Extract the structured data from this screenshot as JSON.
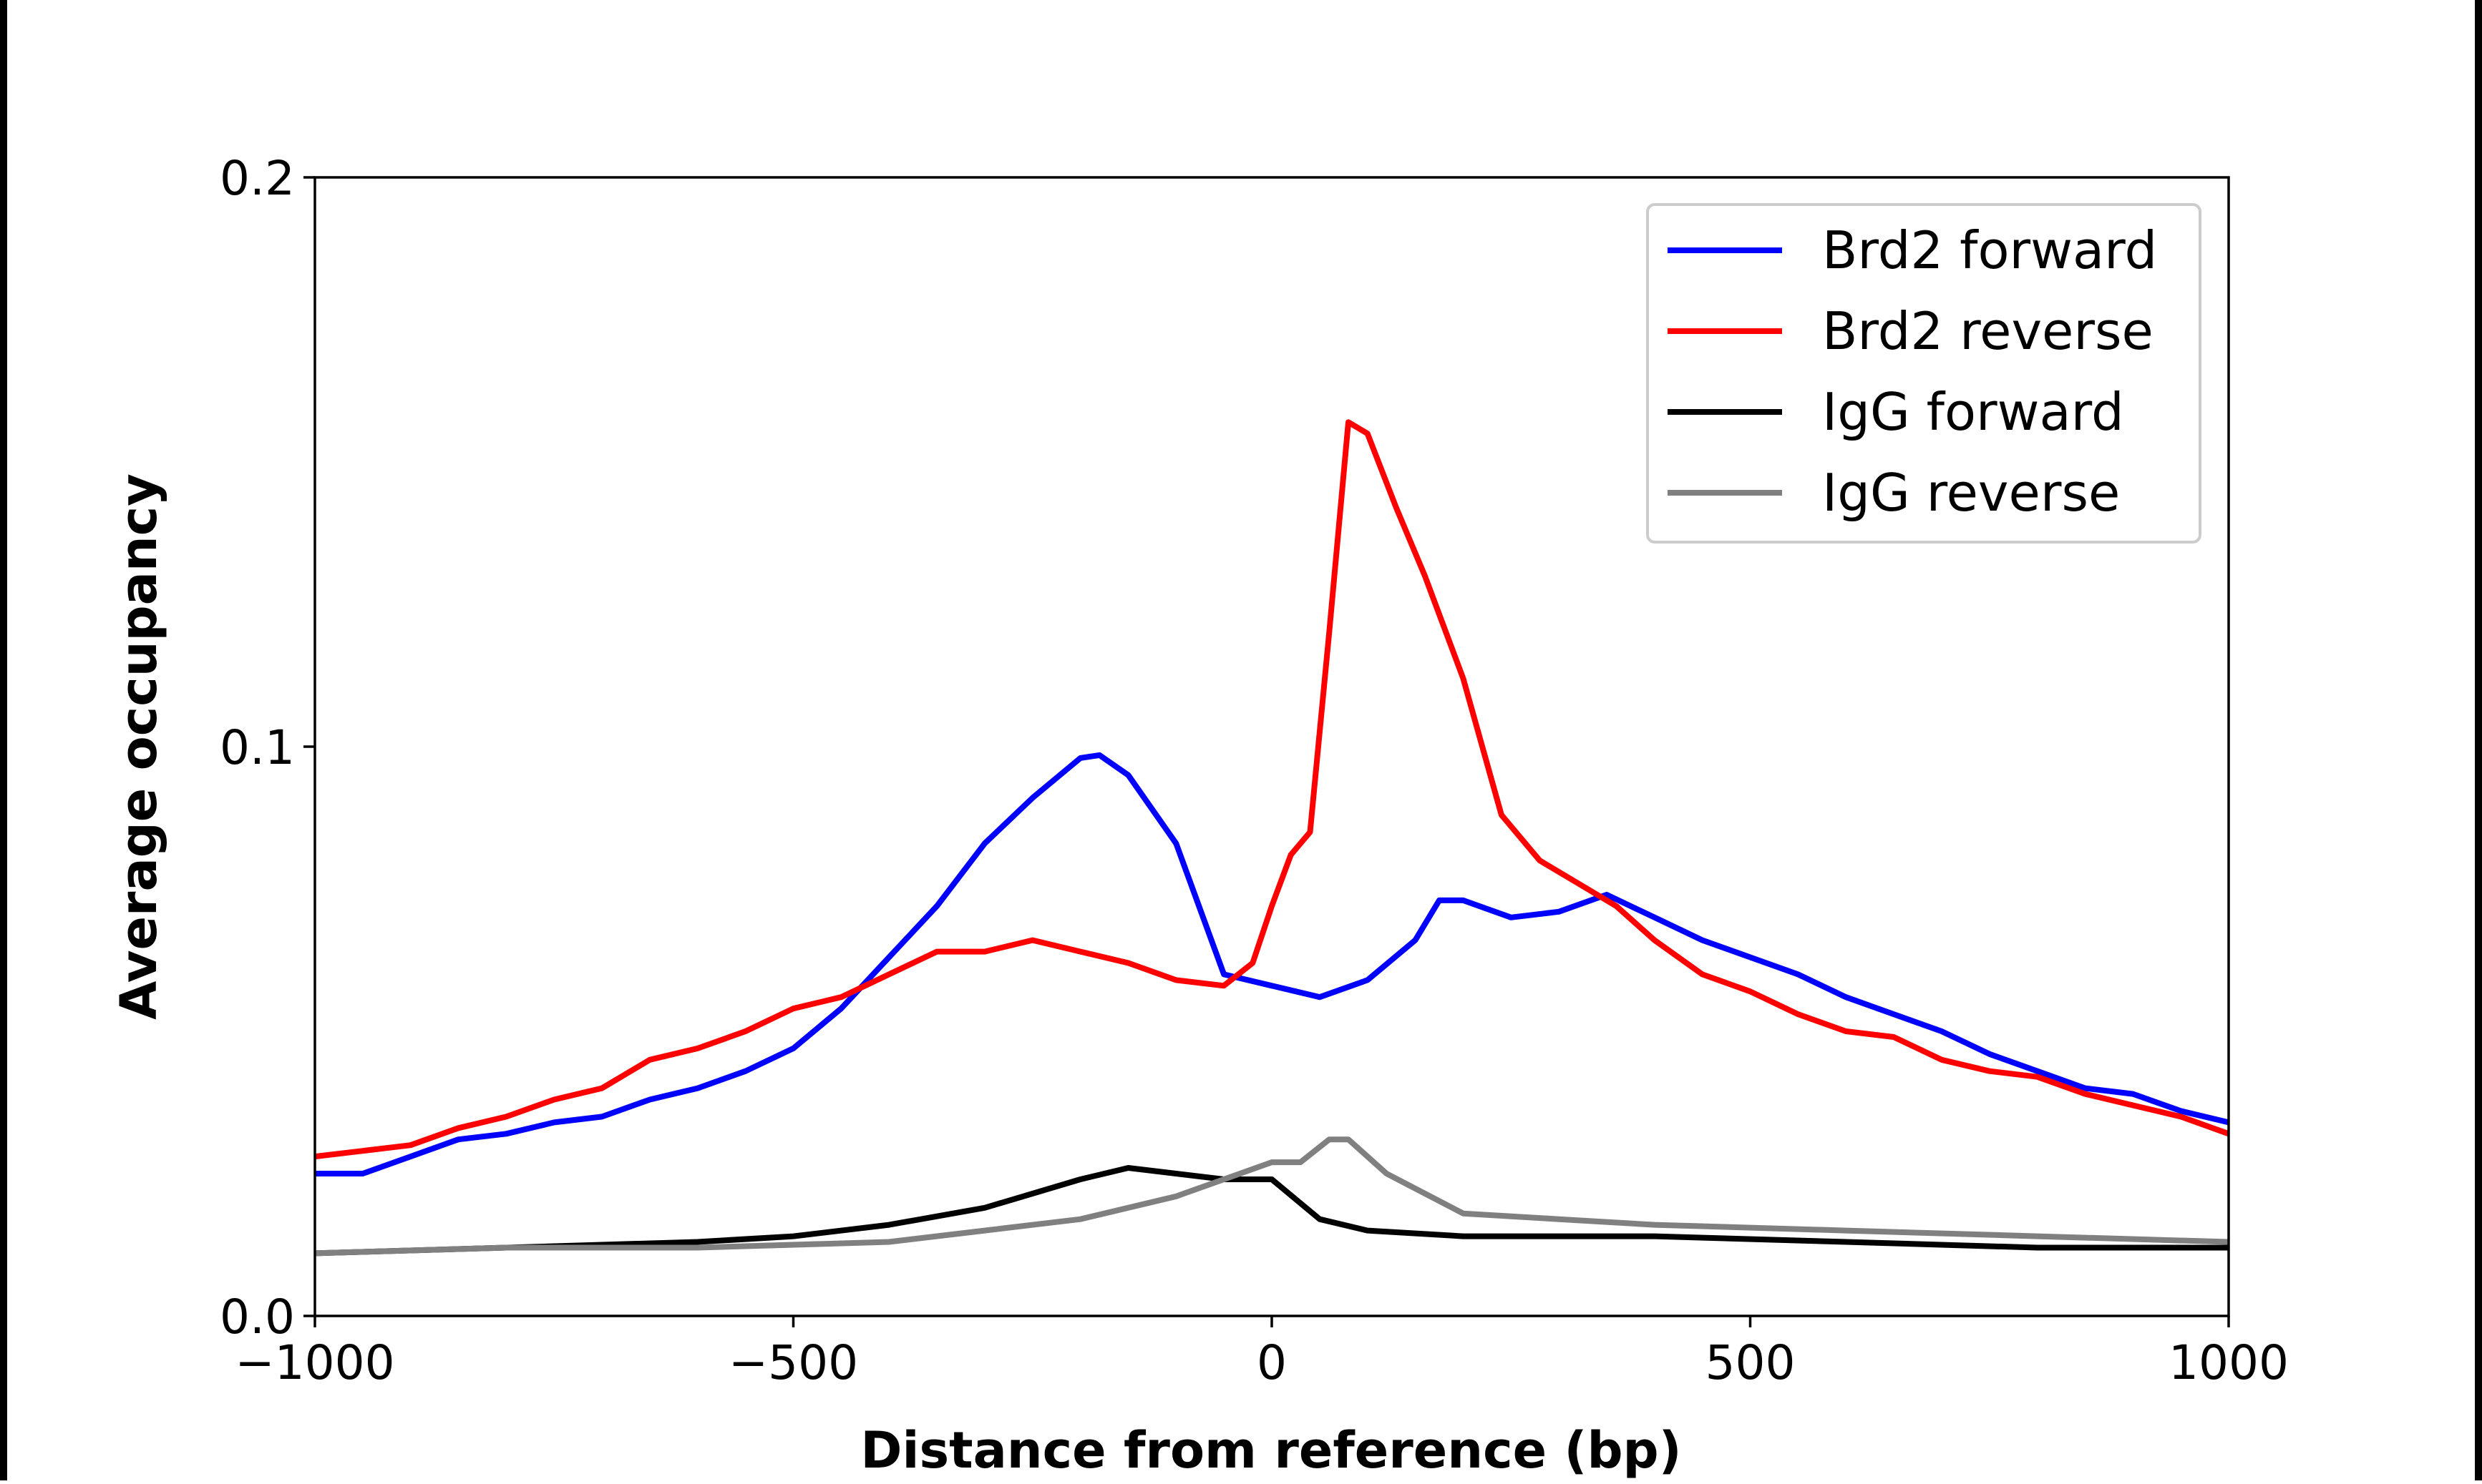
{
  "chart_data": {
    "type": "line",
    "title": "",
    "xlabel": "Distance from reference (bp)",
    "ylabel": "Average occupancy",
    "xlim": [
      -1000,
      1000
    ],
    "ylim": [
      0.0,
      0.2
    ],
    "xticks": [
      -1000,
      -500,
      0,
      500,
      1000
    ],
    "xtick_labels": [
      "−1000",
      "−500",
      "0",
      "500",
      "1000"
    ],
    "yticks": [
      0.0,
      0.1,
      0.2
    ],
    "ytick_labels": [
      "0.0",
      "0.1",
      "0.2"
    ],
    "grid": false,
    "legend_position": "top-right",
    "series": [
      {
        "name": "Brd2 forward",
        "color": "#0000ff",
        "x": [
          -1000,
          -950,
          -900,
          -850,
          -800,
          -750,
          -700,
          -650,
          -600,
          -550,
          -500,
          -450,
          -400,
          -350,
          -300,
          -250,
          -200,
          -180,
          -150,
          -100,
          -50,
          0,
          50,
          100,
          150,
          175,
          200,
          250,
          300,
          350,
          400,
          450,
          500,
          550,
          600,
          650,
          700,
          750,
          800,
          850,
          900,
          950,
          1000
        ],
        "y": [
          0.025,
          0.025,
          0.028,
          0.031,
          0.032,
          0.034,
          0.035,
          0.038,
          0.04,
          0.043,
          0.047,
          0.054,
          0.063,
          0.072,
          0.083,
          0.091,
          0.098,
          0.0985,
          0.095,
          0.083,
          0.06,
          0.058,
          0.056,
          0.059,
          0.066,
          0.073,
          0.073,
          0.07,
          0.071,
          0.074,
          0.07,
          0.066,
          0.063,
          0.06,
          0.056,
          0.053,
          0.05,
          0.046,
          0.043,
          0.04,
          0.039,
          0.036,
          0.034
        ]
      },
      {
        "name": "Brd2 reverse",
        "color": "#ff0000",
        "x": [
          -1000,
          -950,
          -900,
          -850,
          -800,
          -750,
          -700,
          -650,
          -600,
          -550,
          -500,
          -450,
          -400,
          -350,
          -300,
          -250,
          -200,
          -150,
          -100,
          -50,
          -20,
          0,
          20,
          40,
          60,
          80,
          100,
          130,
          160,
          200,
          240,
          280,
          320,
          360,
          400,
          450,
          500,
          550,
          600,
          650,
          700,
          750,
          800,
          850,
          900,
          950,
          1000
        ],
        "y": [
          0.028,
          0.029,
          0.03,
          0.033,
          0.035,
          0.038,
          0.04,
          0.045,
          0.047,
          0.05,
          0.054,
          0.056,
          0.06,
          0.064,
          0.064,
          0.066,
          0.064,
          0.062,
          0.059,
          0.058,
          0.062,
          0.072,
          0.081,
          0.085,
          0.12,
          0.157,
          0.155,
          0.142,
          0.13,
          0.112,
          0.088,
          0.08,
          0.076,
          0.072,
          0.066,
          0.06,
          0.057,
          0.053,
          0.05,
          0.049,
          0.045,
          0.043,
          0.042,
          0.039,
          0.037,
          0.035,
          0.032
        ]
      },
      {
        "name": "IgG forward",
        "color": "#000000",
        "x": [
          -1000,
          -800,
          -600,
          -500,
          -400,
          -300,
          -200,
          -150,
          -100,
          -50,
          0,
          50,
          100,
          200,
          400,
          600,
          800,
          1000
        ],
        "y": [
          0.011,
          0.012,
          0.013,
          0.014,
          0.016,
          0.019,
          0.024,
          0.026,
          0.025,
          0.024,
          0.024,
          0.017,
          0.015,
          0.014,
          0.014,
          0.013,
          0.012,
          0.012
        ]
      },
      {
        "name": "IgG reverse",
        "color": "#808080",
        "x": [
          -1000,
          -800,
          -600,
          -400,
          -300,
          -200,
          -100,
          -50,
          0,
          30,
          60,
          80,
          120,
          200,
          300,
          400,
          600,
          800,
          1000
        ],
        "y": [
          0.011,
          0.012,
          0.012,
          0.013,
          0.015,
          0.017,
          0.021,
          0.024,
          0.027,
          0.027,
          0.031,
          0.031,
          0.025,
          0.018,
          0.017,
          0.016,
          0.015,
          0.014,
          0.013
        ]
      }
    ]
  }
}
